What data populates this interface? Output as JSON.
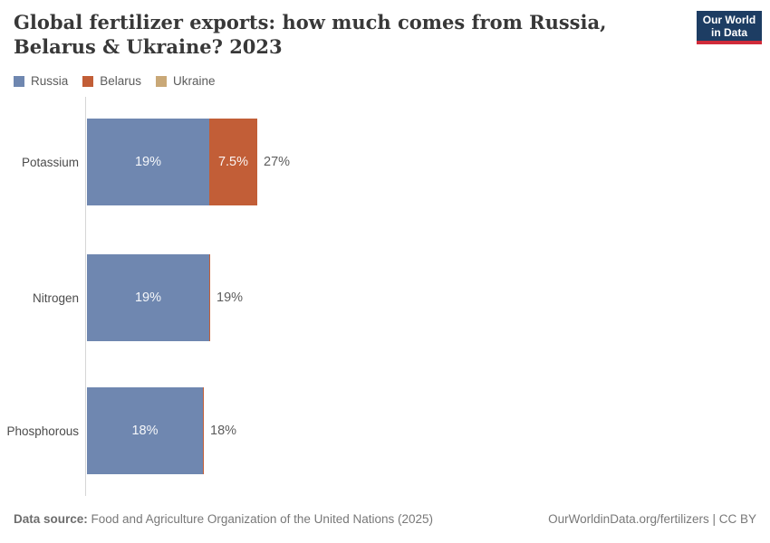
{
  "header": {
    "title": "Global fertilizer exports: how much comes from Russia, Belarus & Ukraine? 2023",
    "logo": {
      "line1": "Our World",
      "line2": "in Data",
      "bg_color": "#1d3d63",
      "accent_color": "#d02b3a"
    }
  },
  "chart_data": {
    "type": "bar",
    "orientation": "horizontal",
    "stacked": true,
    "unit": "%",
    "xlim": [
      0,
      100
    ],
    "grid": false,
    "legend_position": "top-left",
    "categories": [
      "Potassium",
      "Nitrogen",
      "Phosphorous"
    ],
    "series": [
      {
        "name": "Russia",
        "color": "#6f87b0",
        "values": [
          19,
          19,
          18
        ],
        "labels": [
          "19%",
          "19%",
          "18%"
        ]
      },
      {
        "name": "Belarus",
        "color": "#c25e37",
        "values": [
          7.5,
          0.2,
          0.1
        ],
        "labels": [
          "7.5%",
          "",
          ""
        ]
      },
      {
        "name": "Ukraine",
        "color": "#c9a877",
        "values": [
          0,
          0,
          0
        ],
        "labels": [
          "",
          "",
          ""
        ]
      }
    ],
    "totals": [
      "27%",
      "19%",
      "18%"
    ]
  },
  "footer": {
    "source_label": "Data source:",
    "source_text": " Food and Agriculture Organization of the United Nations (2025)",
    "credit": "OurWorldinData.org/fertilizers | CC BY"
  }
}
